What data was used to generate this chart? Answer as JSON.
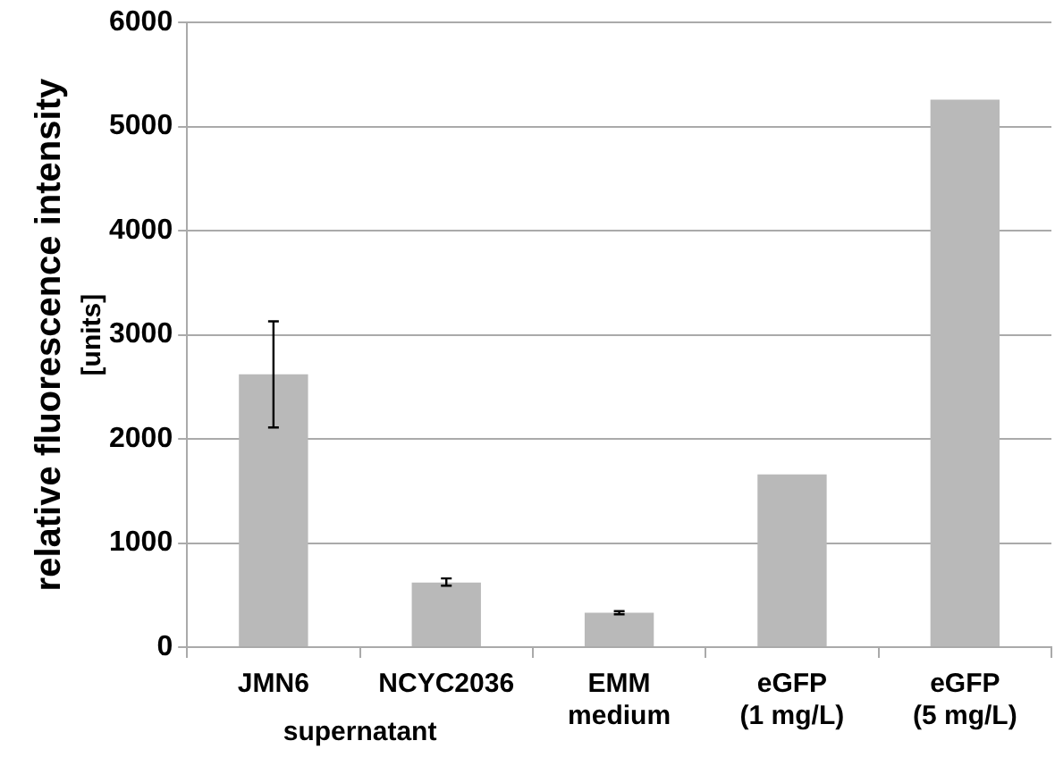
{
  "chart_data": {
    "type": "bar",
    "ylabel": "relative fluorescence intensity\n[units]",
    "categories": [
      "JMN6",
      "NCYC2036",
      "EMM\nmedium",
      "eGFP\n(1 mg/L)",
      "eGFP\n(5 mg/L)"
    ],
    "values": [
      2620,
      620,
      330,
      1660,
      5260
    ],
    "errors": [
      [
        2110,
        3130
      ],
      [
        590,
        660
      ],
      [
        315,
        345
      ],
      null,
      null
    ],
    "color": "#b9b9b9",
    "ylim": [
      0,
      6000
    ],
    "yticks": [
      0,
      1000,
      2000,
      3000,
      4000,
      5000,
      6000
    ],
    "grid": "y",
    "legend": false,
    "annotations": [
      "supernatant"
    ]
  }
}
